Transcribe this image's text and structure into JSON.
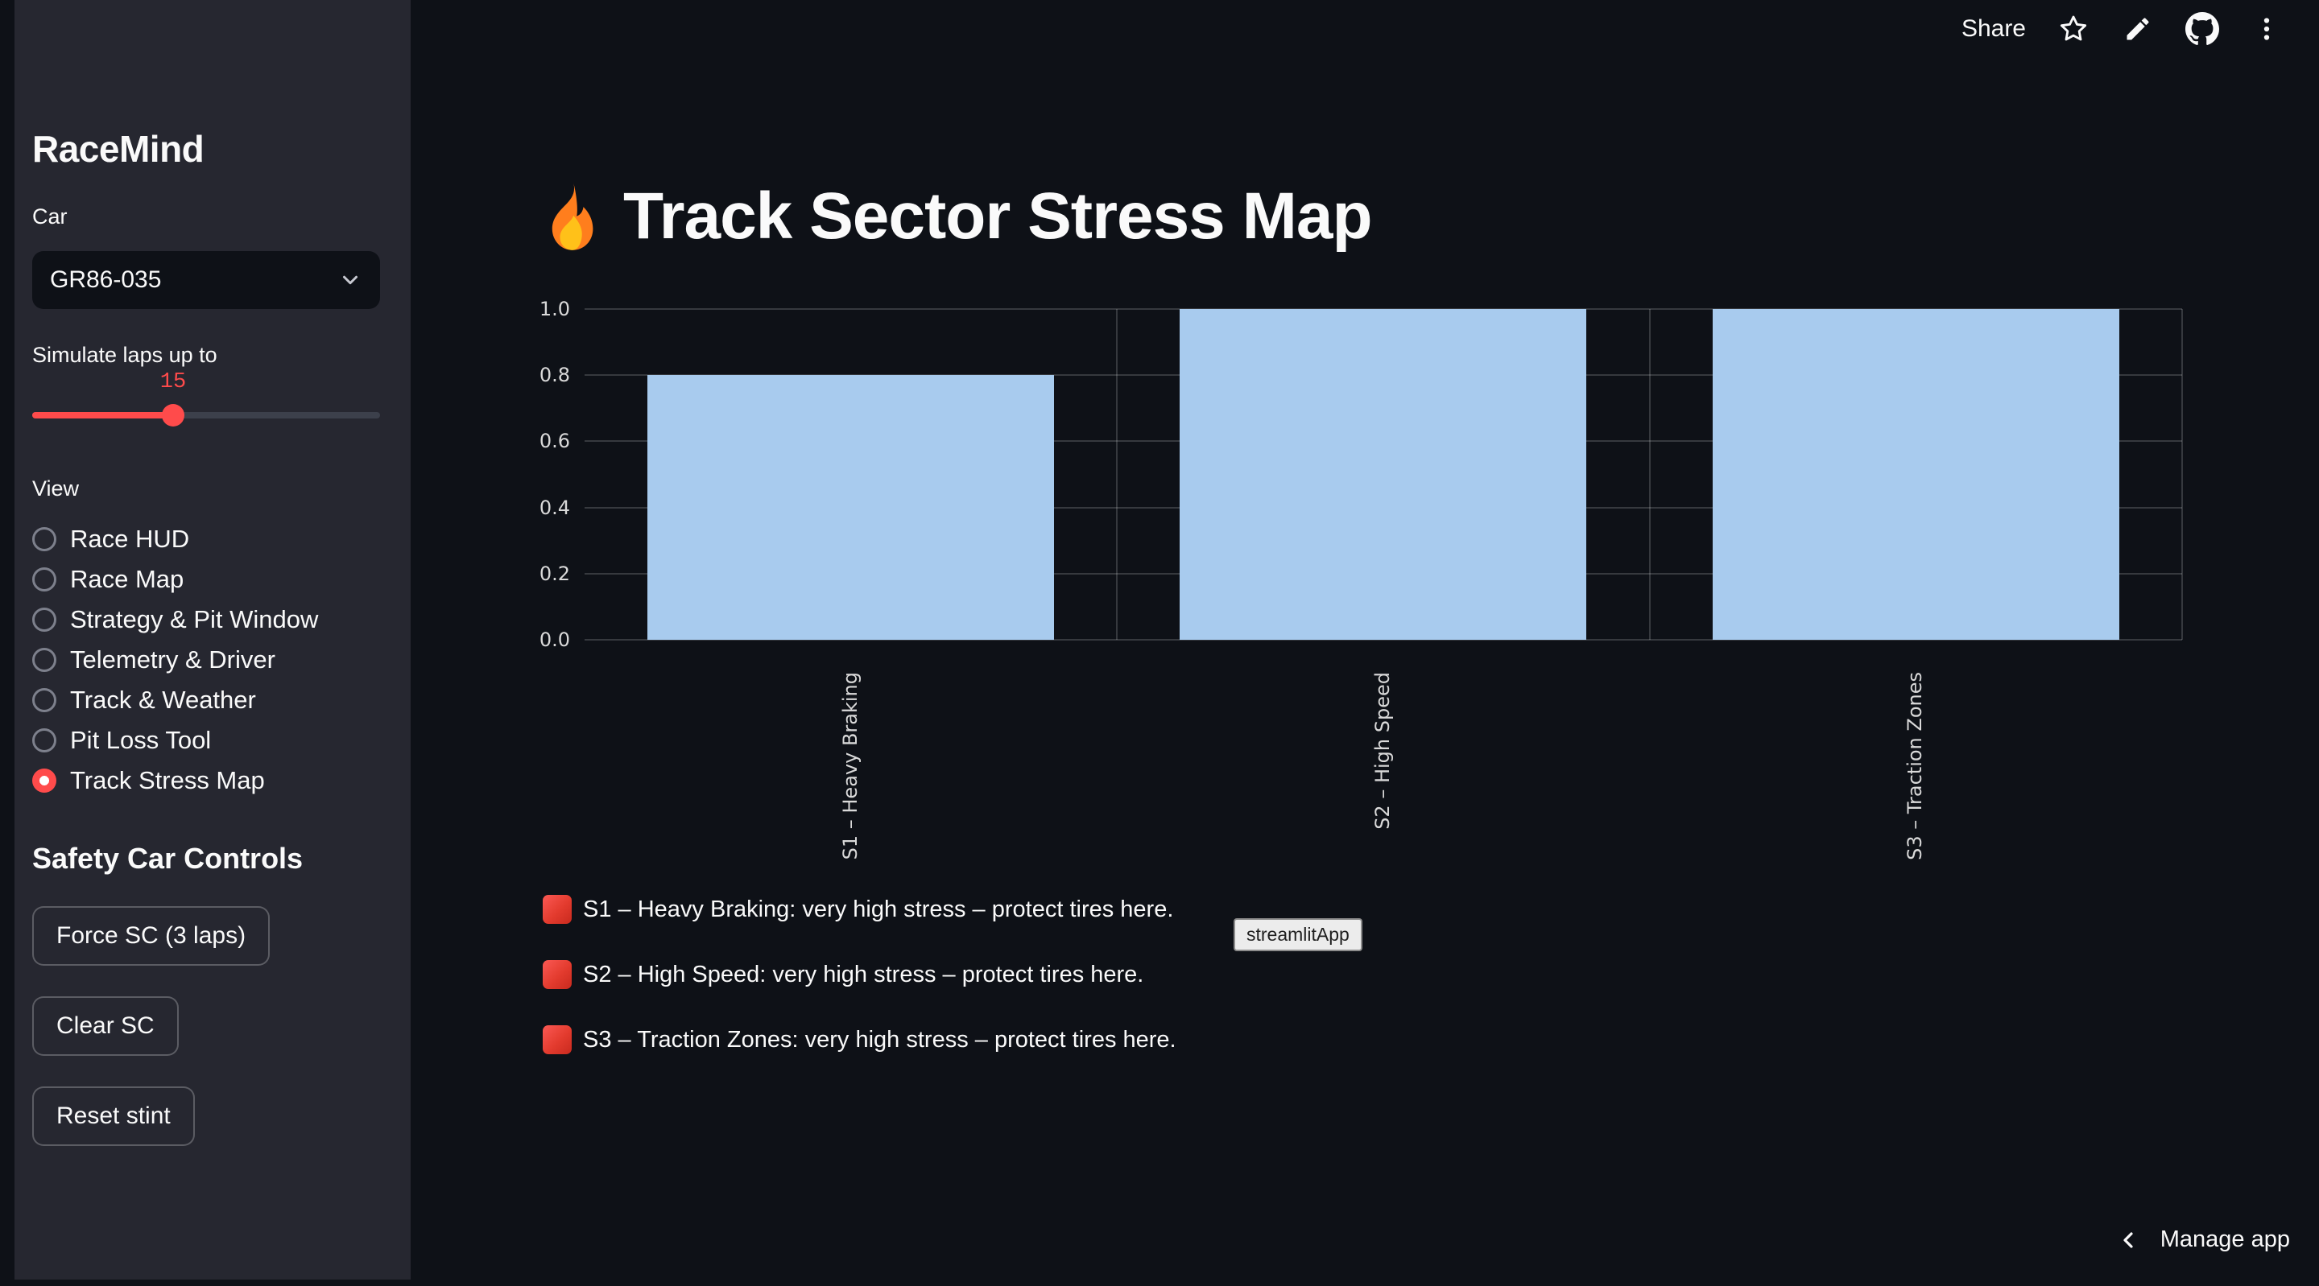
{
  "toolbar": {
    "share_label": "Share",
    "icons": [
      "star-icon",
      "edit-icon",
      "github-icon",
      "overflow-menu-icon"
    ]
  },
  "sidebar": {
    "title": "RaceMind",
    "car_label": "Car",
    "car_selected": "GR86-035",
    "slider_label": "Simulate laps up to",
    "slider_value": "15",
    "view_label": "View",
    "view_options": [
      {
        "label": "Race HUD",
        "selected": false
      },
      {
        "label": "Race Map",
        "selected": false
      },
      {
        "label": "Strategy & Pit Window",
        "selected": false
      },
      {
        "label": "Telemetry & Driver",
        "selected": false
      },
      {
        "label": "Track & Weather",
        "selected": false
      },
      {
        "label": "Pit Loss Tool",
        "selected": false
      },
      {
        "label": "Track Stress Map",
        "selected": true
      }
    ],
    "safety_heading": "Safety Car Controls",
    "buttons": [
      {
        "label": "Force SC (3 laps)"
      },
      {
        "label": "Clear SC"
      },
      {
        "label": "Reset stint"
      }
    ]
  },
  "main": {
    "title": "Track Sector Stress Map",
    "title_icon": "fire-emoji",
    "captions": [
      {
        "icon": "red-square-emoji",
        "text": "S1 – Heavy Braking: very high stress – protect tires here."
      },
      {
        "icon": "red-square-emoji",
        "text": "S2 – High Speed: very high stress – protect tires here."
      },
      {
        "icon": "red-square-emoji",
        "text": "S3 – Traction Zones: very high stress – protect tires here."
      }
    ],
    "hover_tooltip": "streamlitApp",
    "manage_app_label": "Manage app"
  },
  "chart_data": {
    "type": "bar",
    "categories": [
      "S1 – Heavy Braking",
      "S2 – High Speed",
      "S3 – Traction Zones"
    ],
    "values": [
      0.8,
      1.0,
      1.0
    ],
    "title": "",
    "xlabel": "",
    "ylabel": "",
    "ylim": [
      0.0,
      1.0
    ],
    "yticks": [
      0.0,
      0.2,
      0.4,
      0.6,
      0.8,
      1.0
    ],
    "x_tick_rotation": 90,
    "grid": true,
    "legend_position": "none",
    "bar_color": "#a8cbee",
    "background": "transparent"
  },
  "colors": {
    "app_background": "#0e1117",
    "sidebar_background": "#262730",
    "text": "#fafafa",
    "accent": "#ff4b4b",
    "bar_fill": "#a8cbee"
  }
}
